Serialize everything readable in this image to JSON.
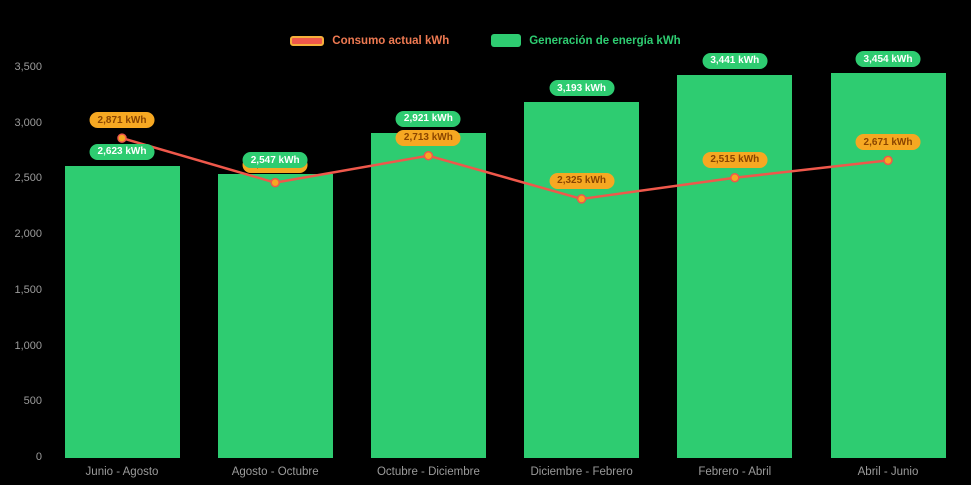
{
  "chart_data": {
    "type": "combo",
    "title": "",
    "xlabel": "",
    "ylabel": "",
    "categories": [
      "Junio - Agosto",
      "Agosto - Octubre",
      "Octubre - Diciembre",
      "Diciembre - Febrero",
      "Febrero - Abril",
      "Abril - Junio"
    ],
    "series": [
      {
        "name": "Consumo actual kWh",
        "type": "line",
        "values": [
          2871,
          2471,
          2713,
          2325,
          2515,
          2671
        ],
        "labels": [
          "2,871 kWh",
          "2,471 kWh",
          "2,713 kWh",
          "2,325 kWh",
          "2,515 kWh",
          "2,671 kWh"
        ],
        "color": "#ef584b",
        "marker_color": "#f6a822",
        "badge_bg": "#f6a822",
        "badge_text_color": "#8a4500",
        "legend_text_color": "#ef7a52"
      },
      {
        "name": "Generación de energía kWh",
        "type": "bar",
        "values": [
          2623,
          2547,
          2921,
          3193,
          3441,
          3454
        ],
        "labels": [
          "2,623 kWh",
          "2,547 kWh",
          "2,921 kWh",
          "3,193 kWh",
          "3,441 kWh",
          "3,454 kWh"
        ],
        "color": "#2ecc71",
        "badge_bg": "#2ecc71",
        "badge_text_color": "#ffffff",
        "legend_text_color": "#2ecc71"
      }
    ],
    "ylim": [
      0,
      3500
    ],
    "yticks": {
      "values": [
        0,
        500,
        1000,
        1500,
        2000,
        2500,
        3000,
        3500
      ],
      "labels": [
        "0",
        "500",
        "1,000",
        "1,500",
        "2,000",
        "2,500",
        "3,000",
        "3,500"
      ]
    },
    "legend_position": "top",
    "grid": false,
    "background": "#000000",
    "axis_label_color": "#9b9b9b"
  }
}
